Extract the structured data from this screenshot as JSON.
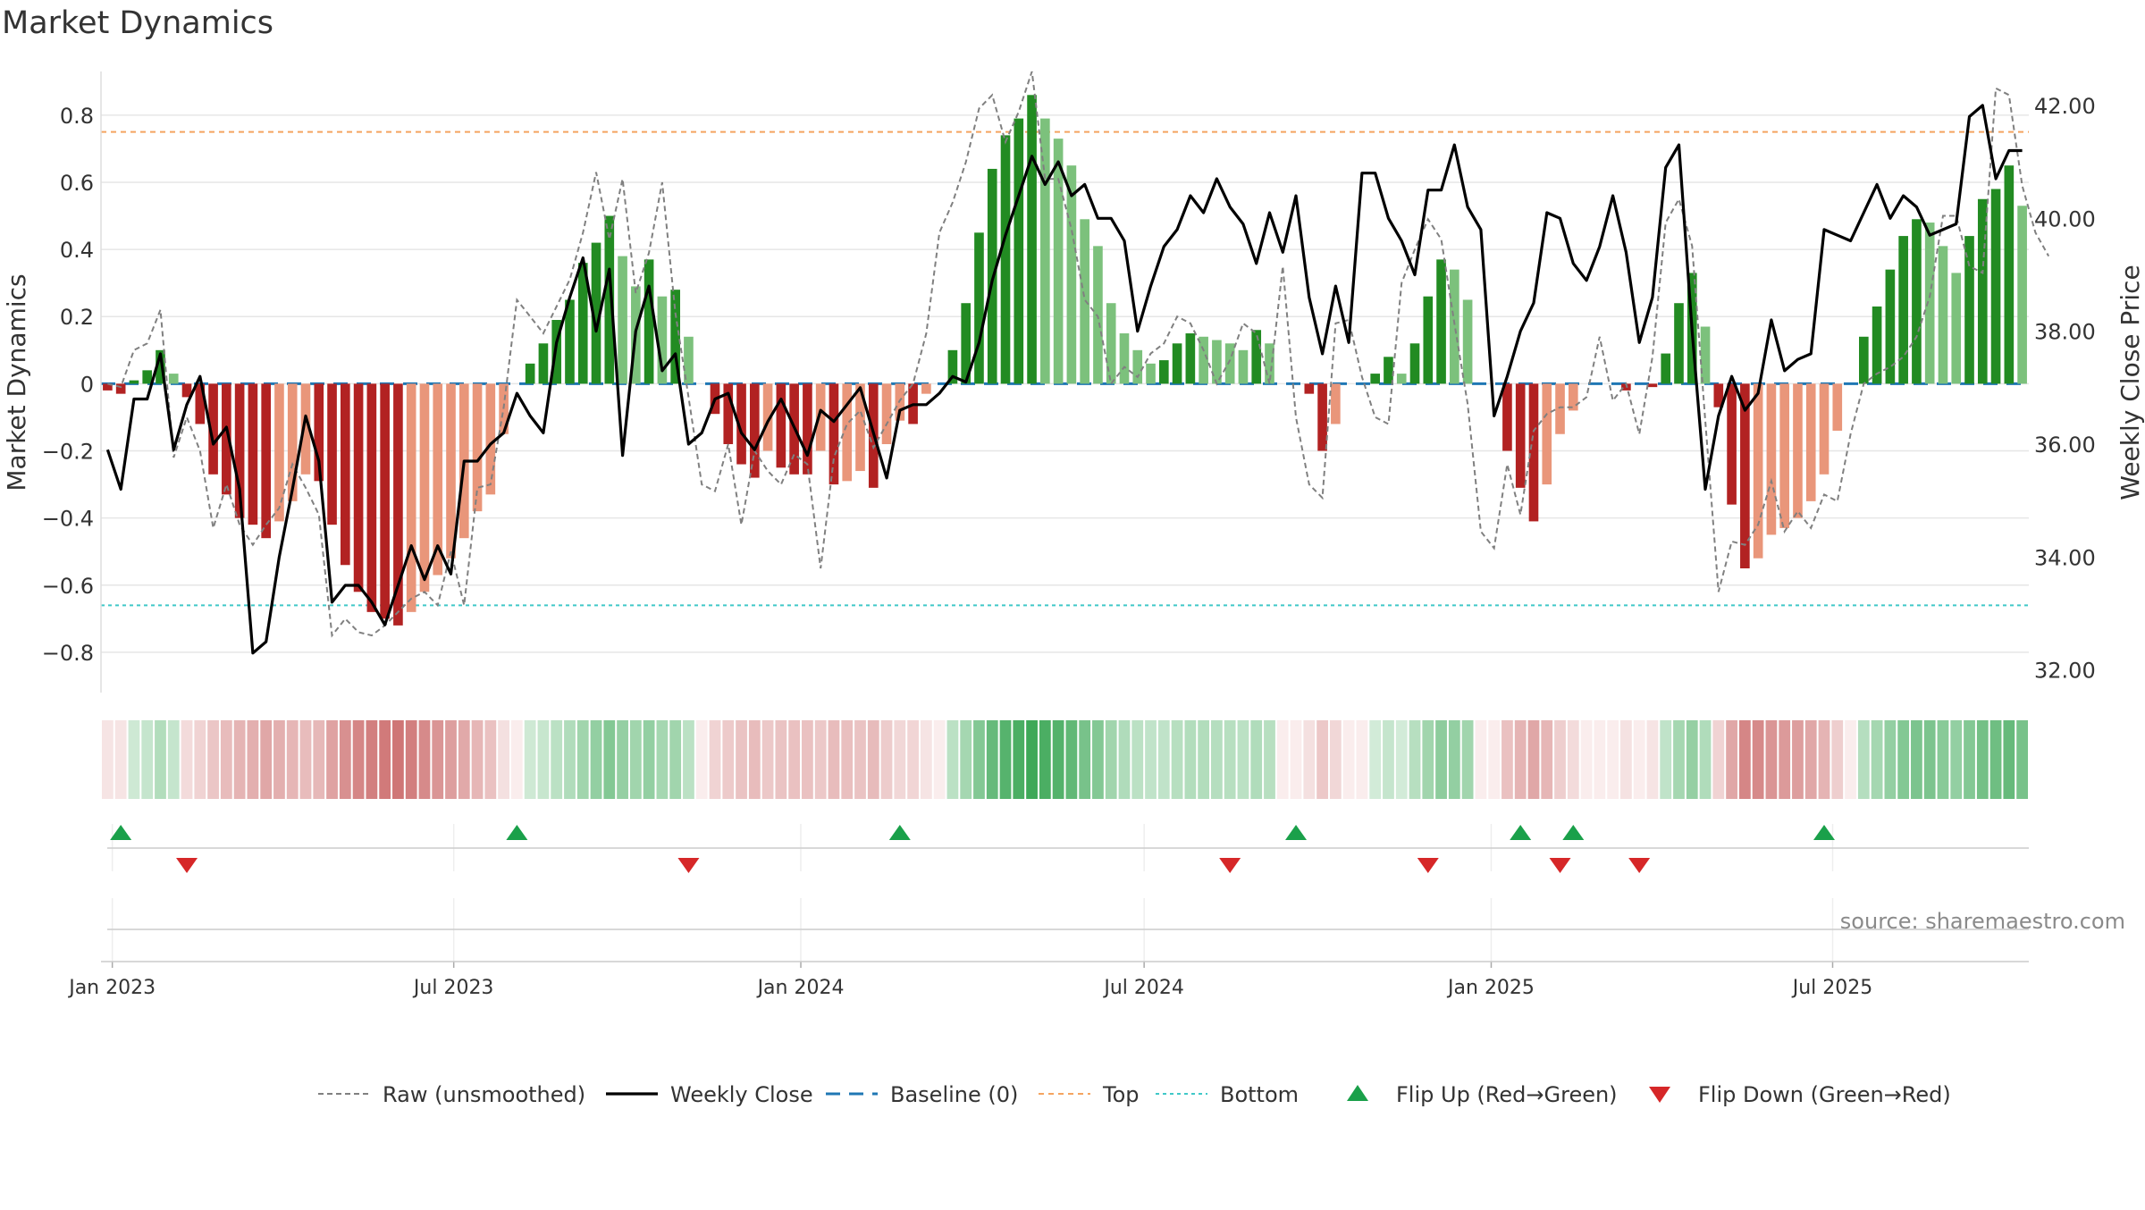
{
  "chart_data": {
    "type": "bar",
    "title": "Market Dynamics",
    "source": "source: sharemaestro.com",
    "left_axis": {
      "label": "Market Dynamics",
      "ylim": [
        -0.92,
        0.93
      ],
      "ticks": [
        0.8,
        0.6,
        0.4,
        0.2,
        0,
        -0.2,
        -0.4,
        -0.6,
        -0.8
      ],
      "tick_labels": [
        "0.8",
        "0.6",
        "0.4",
        "0.2",
        "0",
        "−0.2",
        "−0.4",
        "−0.6",
        "−0.8"
      ]
    },
    "right_axis": {
      "label": "Weekly Close Price",
      "ylim": [
        31.6,
        42.6
      ],
      "ticks": [
        42,
        40,
        38,
        36,
        34,
        32
      ],
      "tick_labels": [
        "42.00",
        "40.00",
        "38.00",
        "36.00",
        "34.00",
        "32.00"
      ]
    },
    "x_axis": {
      "start": "2022-12-26",
      "week_count": 146,
      "ticks": [
        {
          "date": "2023-01-01",
          "label": "Jan 2023"
        },
        {
          "date": "2023-07-01",
          "label": "Jul 2023"
        },
        {
          "date": "2024-01-01",
          "label": "Jan 2024"
        },
        {
          "date": "2024-07-01",
          "label": "Jul 2024"
        },
        {
          "date": "2025-01-01",
          "label": "Jan 2025"
        },
        {
          "date": "2025-07-01",
          "label": "Jul 2025"
        }
      ]
    },
    "reference_lines": {
      "baseline": 0,
      "top": 0.75,
      "bottom": -0.66
    },
    "colors": {
      "strong_green": "#228b22",
      "light_green": "#7cc17c",
      "strong_red": "#b22222",
      "light_red": "#e9967a",
      "close_line": "#000000",
      "raw_line": "#808080",
      "top_line": "#f4a460",
      "bottom_line": "#40c8c8",
      "baseline": "#1f77b4",
      "flip_up": "#1aa04a",
      "flip_down": "#d62728"
    },
    "series": [
      {
        "name": "Market Dynamics",
        "values": [
          -0.02,
          -0.03,
          0.01,
          0.04,
          0.1,
          0.03,
          -0.04,
          -0.12,
          -0.27,
          -0.33,
          -0.4,
          -0.42,
          -0.46,
          -0.41,
          -0.35,
          -0.27,
          -0.29,
          -0.42,
          -0.54,
          -0.62,
          -0.68,
          -0.7,
          -0.72,
          -0.68,
          -0.62,
          -0.57,
          -0.52,
          -0.46,
          -0.38,
          -0.33,
          -0.15,
          0.0,
          0.06,
          0.12,
          0.19,
          0.25,
          0.36,
          0.42,
          0.5,
          0.38,
          0.29,
          0.37,
          0.26,
          0.28,
          0.14,
          0.0,
          -0.09,
          -0.18,
          -0.24,
          -0.28,
          -0.2,
          -0.25,
          -0.27,
          -0.27,
          -0.2,
          -0.3,
          -0.29,
          -0.26,
          -0.31,
          -0.18,
          -0.11,
          -0.12,
          -0.03,
          0.0,
          0.1,
          0.24,
          0.45,
          0.64,
          0.74,
          0.79,
          0.86,
          0.79,
          0.73,
          0.65,
          0.49,
          0.41,
          0.24,
          0.15,
          0.1,
          0.06,
          0.07,
          0.12,
          0.15,
          0.14,
          0.13,
          0.12,
          0.1,
          0.16,
          0.12,
          0.0,
          0.0,
          -0.03,
          -0.2,
          -0.12,
          0.0,
          0.0,
          0.03,
          0.08,
          0.03,
          0.12,
          0.26,
          0.37,
          0.34,
          0.25,
          0.0,
          0.0,
          -0.2,
          -0.31,
          -0.41,
          -0.3,
          -0.15,
          -0.08,
          0.0,
          0.0,
          0.0,
          -0.02,
          0.0,
          -0.01,
          0.09,
          0.24,
          0.33,
          0.17,
          -0.07,
          -0.36,
          -0.55,
          -0.52,
          -0.45,
          -0.43,
          -0.4,
          -0.35,
          -0.27,
          -0.14,
          0.0,
          0.14,
          0.23,
          0.34,
          0.44,
          0.49,
          0.48,
          0.41,
          0.33,
          0.44,
          0.55,
          0.58,
          0.65,
          0.53
        ]
      },
      {
        "name": "Raw (unsmoothed)",
        "values": [
          0.0,
          -0.01,
          0.1,
          0.12,
          0.22,
          -0.22,
          -0.1,
          -0.2,
          -0.43,
          -0.3,
          -0.42,
          -0.48,
          -0.42,
          -0.37,
          -0.24,
          -0.31,
          -0.39,
          -0.75,
          -0.7,
          -0.74,
          -0.75,
          -0.72,
          -0.68,
          -0.64,
          -0.62,
          -0.66,
          -0.5,
          -0.66,
          -0.31,
          -0.3,
          -0.07,
          0.25,
          0.2,
          0.15,
          0.23,
          0.31,
          0.45,
          0.63,
          0.43,
          0.61,
          0.27,
          0.39,
          0.6,
          0.21,
          -0.04,
          -0.3,
          -0.32,
          -0.18,
          -0.42,
          -0.2,
          -0.26,
          -0.3,
          -0.21,
          -0.24,
          -0.55,
          -0.22,
          -0.12,
          -0.08,
          -0.19,
          -0.12,
          -0.05,
          0.0,
          0.15,
          0.45,
          0.54,
          0.66,
          0.82,
          0.86,
          0.72,
          0.81,
          0.93,
          0.61,
          0.61,
          0.46,
          0.25,
          0.2,
          0.0,
          0.05,
          0.02,
          0.09,
          0.12,
          0.2,
          0.18,
          0.1,
          0.0,
          0.07,
          0.18,
          0.15,
          0.0,
          0.35,
          -0.1,
          -0.3,
          -0.34,
          0.18,
          0.19,
          0.02,
          -0.1,
          -0.12,
          0.3,
          0.4,
          0.49,
          0.43,
          0.18,
          -0.06,
          -0.44,
          -0.49,
          -0.24,
          -0.39,
          -0.14,
          -0.09,
          -0.07,
          -0.07,
          -0.04,
          0.14,
          -0.05,
          0.0,
          -0.15,
          0.08,
          0.48,
          0.55,
          0.41,
          -0.11,
          -0.62,
          -0.47,
          -0.48,
          -0.42,
          -0.29,
          -0.44,
          -0.38,
          -0.43,
          -0.33,
          -0.35,
          -0.15,
          0.0,
          0.03,
          0.05,
          0.08,
          0.14,
          0.26,
          0.5,
          0.5,
          0.35,
          0.33,
          0.88,
          0.86,
          0.59,
          0.45,
          0.38
        ]
      },
      {
        "name": "Weekly Close",
        "values": [
          35.9,
          35.2,
          36.8,
          36.8,
          37.6,
          35.9,
          36.7,
          37.2,
          36.0,
          36.3,
          35.2,
          32.3,
          32.5,
          34.0,
          35.2,
          36.5,
          35.7,
          33.2,
          33.5,
          33.5,
          33.2,
          32.8,
          33.5,
          34.2,
          33.6,
          34.2,
          33.7,
          35.7,
          35.7,
          36.0,
          36.2,
          36.9,
          36.5,
          36.2,
          37.8,
          38.6,
          39.3,
          38.0,
          39.1,
          35.8,
          38.0,
          38.8,
          37.3,
          37.6,
          36.0,
          36.2,
          36.8,
          36.9,
          36.2,
          35.9,
          36.4,
          36.8,
          36.3,
          35.8,
          36.6,
          36.4,
          36.7,
          37.0,
          36.2,
          35.4,
          36.6,
          36.7,
          36.7,
          36.9,
          37.2,
          37.1,
          37.8,
          38.9,
          39.7,
          40.4,
          41.1,
          40.6,
          41.0,
          40.4,
          40.6,
          40.0,
          40.0,
          39.6,
          38.0,
          38.8,
          39.5,
          39.8,
          40.4,
          40.1,
          40.7,
          40.2,
          39.9,
          39.2,
          40.1,
          39.4,
          40.4,
          38.6,
          37.6,
          38.8,
          37.8,
          40.8,
          40.8,
          40.0,
          39.6,
          39.0,
          40.5,
          40.5,
          41.3,
          40.2,
          39.8,
          36.5,
          37.2,
          38.0,
          38.5,
          40.1,
          40.0,
          39.2,
          38.9,
          39.5,
          40.4,
          39.4,
          37.8,
          38.6,
          40.9,
          41.3,
          38.0,
          35.2,
          36.5,
          37.2,
          36.6,
          36.9,
          38.2,
          37.3,
          37.5,
          37.6,
          39.8,
          39.7,
          39.6,
          40.1,
          40.6,
          40.0,
          40.4,
          40.2,
          39.7,
          39.8,
          39.9,
          41.8,
          42.0,
          40.7,
          41.2,
          41.2
        ]
      }
    ],
    "heat_strip": [
      0.12,
      0.12,
      0.22,
      0.26,
      0.34,
      0.26,
      0.16,
      0.2,
      0.26,
      0.3,
      0.34,
      0.36,
      0.4,
      0.36,
      0.33,
      0.3,
      0.32,
      0.42,
      0.5,
      0.55,
      0.58,
      0.6,
      0.62,
      0.58,
      0.53,
      0.48,
      0.44,
      0.39,
      0.33,
      0.28,
      0.14,
      0.12,
      0.22,
      0.25,
      0.3,
      0.35,
      0.42,
      0.48,
      0.55,
      0.47,
      0.42,
      0.48,
      0.4,
      0.42,
      0.3,
      0.12,
      0.2,
      0.24,
      0.27,
      0.3,
      0.25,
      0.27,
      0.28,
      0.28,
      0.25,
      0.3,
      0.29,
      0.27,
      0.31,
      0.23,
      0.18,
      0.19,
      0.12,
      0.12,
      0.3,
      0.4,
      0.55,
      0.68,
      0.75,
      0.8,
      0.86,
      0.8,
      0.76,
      0.7,
      0.6,
      0.55,
      0.42,
      0.35,
      0.3,
      0.28,
      0.28,
      0.32,
      0.34,
      0.34,
      0.33,
      0.32,
      0.3,
      0.35,
      0.32,
      0.12,
      0.12,
      0.14,
      0.25,
      0.18,
      0.12,
      0.12,
      0.2,
      0.26,
      0.2,
      0.32,
      0.42,
      0.5,
      0.48,
      0.42,
      0.12,
      0.12,
      0.28,
      0.34,
      0.4,
      0.33,
      0.22,
      0.16,
      0.12,
      0.12,
      0.12,
      0.13,
      0.12,
      0.12,
      0.28,
      0.4,
      0.47,
      0.35,
      0.2,
      0.4,
      0.55,
      0.53,
      0.48,
      0.46,
      0.44,
      0.4,
      0.34,
      0.22,
      0.12,
      0.33,
      0.4,
      0.48,
      0.55,
      0.58,
      0.58,
      0.53,
      0.48,
      0.55,
      0.62,
      0.64,
      0.68,
      0.6
    ],
    "flips": {
      "up": [
        1,
        31,
        60,
        90,
        107,
        111,
        130
      ],
      "down": [
        6,
        44,
        85,
        100,
        110,
        116
      ]
    },
    "legend": [
      {
        "label": "Raw (unsmoothed)",
        "style": "dashed-gray"
      },
      {
        "label": "Weekly Close",
        "style": "solid-black"
      },
      {
        "label": "Baseline (0)",
        "style": "dashed-blue"
      },
      {
        "label": "Top",
        "style": "dotted-orange"
      },
      {
        "label": "Bottom",
        "style": "dotted-cyan"
      },
      {
        "label": "Flip Up (Red→Green)",
        "style": "triangle-up"
      },
      {
        "label": "Flip Down (Green→Red)",
        "style": "triangle-down"
      }
    ]
  }
}
